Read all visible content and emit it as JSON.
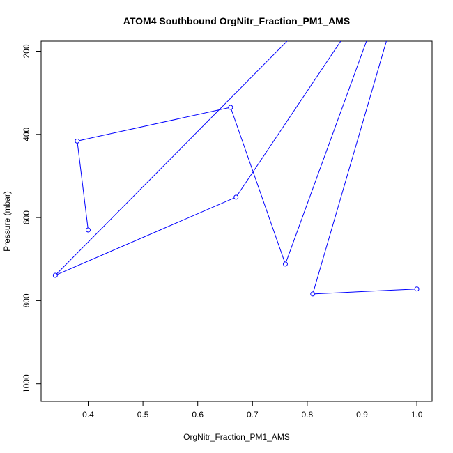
{
  "chart_data": {
    "type": "line",
    "title": "ATOM4 Southbound OrgNitr_Fraction_PM1_AMS",
    "xlabel": "OrgNitr_Fraction_PM1_AMS",
    "ylabel": "Pressure (mbar)",
    "xlim": [
      0.34,
      1.0
    ],
    "ylim": [
      1000,
      200
    ],
    "y_reversed": true,
    "x_ticks": [
      "0.4",
      "0.5",
      "0.6",
      "0.7",
      "0.8",
      "0.9",
      "1.0"
    ],
    "y_ticks": [
      "200",
      "400",
      "600",
      "800",
      "1000"
    ],
    "grid": false,
    "color": "#0000ff",
    "series": [
      {
        "x": [
          0.38,
          0.4
        ],
        "y": [
          416,
          630
        ],
        "marked": [
          true,
          true
        ]
      },
      {
        "x": [
          0.38,
          0.66,
          0.76,
          0.94
        ],
        "y": [
          416,
          335,
          712,
          60
        ],
        "marked": [
          true,
          true,
          true,
          false
        ]
      },
      {
        "x": [
          0.67,
          0.34,
          0.85
        ],
        "y": [
          551,
          739,
          60
        ],
        "marked": [
          true,
          true,
          false
        ]
      },
      {
        "x": [
          0.67,
          0.92
        ],
        "y": [
          551,
          60
        ],
        "marked": [
          true,
          false
        ]
      },
      {
        "x": [
          1.0,
          0.81,
          0.97
        ],
        "y": [
          772,
          784,
          60
        ],
        "marked": [
          true,
          true,
          false
        ]
      }
    ]
  }
}
